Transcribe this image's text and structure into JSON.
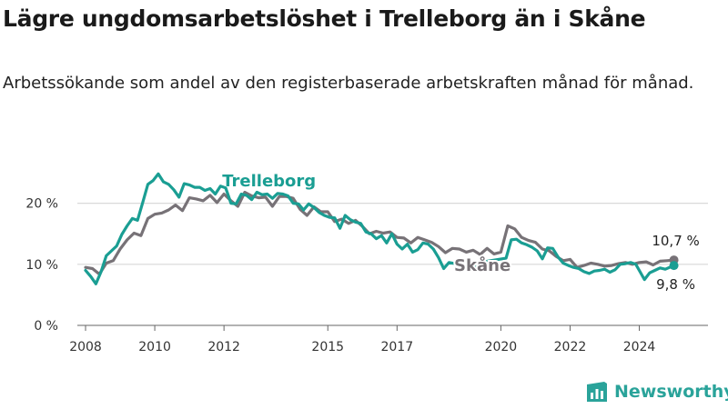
{
  "header": {
    "title": "Lägre ungdomsarbetslöshet i Trelleborg än i Skåne",
    "subtitle": "Arbetssökande som andel av den registerbaserade arbetskraften månad för månad."
  },
  "brand": {
    "name": "Newsworthy",
    "icon": "newsworthy-logo-icon",
    "color": "#2aa39a"
  },
  "chart_data": {
    "type": "line",
    "title": "",
    "xlabel": "",
    "ylabel": "",
    "xlim": [
      2007.5,
      2026.3
    ],
    "ylim": [
      0,
      25
    ],
    "grid": true,
    "y_ticks": [
      {
        "value": 0,
        "label": "0 %"
      },
      {
        "value": 10,
        "label": "10 %"
      },
      {
        "value": 20,
        "label": "20 %"
      }
    ],
    "x_ticks": [
      {
        "value": 2008,
        "label": "2008"
      },
      {
        "value": 2010,
        "label": "2010"
      },
      {
        "value": 2012,
        "label": "2012"
      },
      {
        "value": 2015,
        "label": "2015"
      },
      {
        "value": 2017,
        "label": "2017"
      },
      {
        "value": 2020,
        "label": "2020"
      },
      {
        "value": 2022,
        "label": "2022"
      },
      {
        "value": 2024,
        "label": "2024"
      }
    ],
    "series": [
      {
        "name": "Skåne",
        "color": "#777277",
        "end_label": "10,7 %",
        "points": [
          [
            2008.0,
            9.5
          ],
          [
            2008.2,
            9.3
          ],
          [
            2008.4,
            8.4
          ],
          [
            2008.6,
            10.2
          ],
          [
            2008.8,
            10.6
          ],
          [
            2009.0,
            12.5
          ],
          [
            2009.2,
            14.0
          ],
          [
            2009.4,
            15.1
          ],
          [
            2009.6,
            14.7
          ],
          [
            2009.8,
            17.5
          ],
          [
            2010.0,
            18.2
          ],
          [
            2010.2,
            18.4
          ],
          [
            2010.4,
            18.9
          ],
          [
            2010.6,
            19.7
          ],
          [
            2010.8,
            18.8
          ],
          [
            2011.0,
            20.9
          ],
          [
            2011.2,
            20.7
          ],
          [
            2011.4,
            20.4
          ],
          [
            2011.6,
            21.3
          ],
          [
            2011.8,
            20.1
          ],
          [
            2012.0,
            21.5
          ],
          [
            2012.2,
            20.4
          ],
          [
            2012.4,
            19.5
          ],
          [
            2012.6,
            21.8
          ],
          [
            2012.8,
            21.2
          ],
          [
            2013.0,
            20.9
          ],
          [
            2013.2,
            21.0
          ],
          [
            2013.4,
            19.5
          ],
          [
            2013.6,
            21.1
          ],
          [
            2013.8,
            21.1
          ],
          [
            2014.0,
            20.8
          ],
          [
            2014.2,
            19.0
          ],
          [
            2014.4,
            18.0
          ],
          [
            2014.6,
            19.4
          ],
          [
            2014.8,
            18.6
          ],
          [
            2015.0,
            18.6
          ],
          [
            2015.2,
            17.0
          ],
          [
            2015.4,
            17.4
          ],
          [
            2015.6,
            16.7
          ],
          [
            2015.8,
            17.2
          ],
          [
            2016.0,
            16.2
          ],
          [
            2016.2,
            15.0
          ],
          [
            2016.4,
            15.4
          ],
          [
            2016.6,
            15.1
          ],
          [
            2016.8,
            15.3
          ],
          [
            2017.0,
            14.4
          ],
          [
            2017.2,
            14.3
          ],
          [
            2017.4,
            13.5
          ],
          [
            2017.6,
            14.4
          ],
          [
            2017.8,
            14.0
          ],
          [
            2018.0,
            13.6
          ],
          [
            2018.2,
            12.9
          ],
          [
            2018.4,
            11.9
          ],
          [
            2018.6,
            12.6
          ],
          [
            2018.8,
            12.5
          ],
          [
            2019.0,
            12.0
          ],
          [
            2019.2,
            12.3
          ],
          [
            2019.4,
            11.6
          ],
          [
            2019.6,
            12.6
          ],
          [
            2019.8,
            11.7
          ],
          [
            2020.0,
            12.0
          ],
          [
            2020.2,
            16.3
          ],
          [
            2020.4,
            15.8
          ],
          [
            2020.6,
            14.4
          ],
          [
            2020.8,
            13.9
          ],
          [
            2021.0,
            13.6
          ],
          [
            2021.2,
            12.5
          ],
          [
            2021.4,
            12.2
          ],
          [
            2021.6,
            11.3
          ],
          [
            2021.8,
            10.6
          ],
          [
            2022.0,
            10.8
          ],
          [
            2022.2,
            9.5
          ],
          [
            2022.4,
            9.8
          ],
          [
            2022.6,
            10.2
          ],
          [
            2022.8,
            10.0
          ],
          [
            2023.0,
            9.7
          ],
          [
            2023.2,
            9.8
          ],
          [
            2023.4,
            10.1
          ],
          [
            2023.6,
            10.3
          ],
          [
            2023.8,
            10.0
          ],
          [
            2024.0,
            10.3
          ],
          [
            2024.2,
            10.4
          ],
          [
            2024.4,
            9.9
          ],
          [
            2024.6,
            10.5
          ],
          [
            2024.8,
            10.6
          ],
          [
            2025.0,
            10.7
          ]
        ]
      },
      {
        "name": "Trelleborg",
        "color": "#1a9e93",
        "end_label": "9,8 %",
        "points": [
          [
            2008.0,
            9.0
          ],
          [
            2008.15,
            8.0
          ],
          [
            2008.3,
            6.8
          ],
          [
            2008.45,
            8.8
          ],
          [
            2008.6,
            11.4
          ],
          [
            2008.75,
            12.2
          ],
          [
            2008.9,
            13.0
          ],
          [
            2009.05,
            14.9
          ],
          [
            2009.2,
            16.3
          ],
          [
            2009.35,
            17.5
          ],
          [
            2009.5,
            17.2
          ],
          [
            2009.65,
            20.1
          ],
          [
            2009.8,
            23.1
          ],
          [
            2009.95,
            23.7
          ],
          [
            2010.1,
            24.8
          ],
          [
            2010.25,
            23.5
          ],
          [
            2010.4,
            23.1
          ],
          [
            2010.55,
            22.2
          ],
          [
            2010.7,
            21.0
          ],
          [
            2010.85,
            23.2
          ],
          [
            2011.0,
            23.0
          ],
          [
            2011.15,
            22.6
          ],
          [
            2011.3,
            22.6
          ],
          [
            2011.45,
            22.1
          ],
          [
            2011.6,
            22.4
          ],
          [
            2011.75,
            21.5
          ],
          [
            2011.9,
            22.8
          ],
          [
            2012.05,
            22.5
          ],
          [
            2012.2,
            20.0
          ],
          [
            2012.35,
            19.9
          ],
          [
            2012.5,
            21.5
          ],
          [
            2012.65,
            21.3
          ],
          [
            2012.8,
            20.6
          ],
          [
            2012.95,
            21.8
          ],
          [
            2013.1,
            21.4
          ],
          [
            2013.25,
            21.5
          ],
          [
            2013.4,
            20.8
          ],
          [
            2013.55,
            21.6
          ],
          [
            2013.7,
            21.5
          ],
          [
            2013.85,
            21.2
          ],
          [
            2014.0,
            20.0
          ],
          [
            2014.15,
            19.9
          ],
          [
            2014.3,
            18.9
          ],
          [
            2014.45,
            19.9
          ],
          [
            2014.6,
            19.3
          ],
          [
            2014.75,
            18.5
          ],
          [
            2014.9,
            18.0
          ],
          [
            2015.05,
            17.7
          ],
          [
            2015.2,
            17.6
          ],
          [
            2015.35,
            15.9
          ],
          [
            2015.5,
            18.0
          ],
          [
            2015.65,
            17.3
          ],
          [
            2015.8,
            16.9
          ],
          [
            2015.95,
            16.7
          ],
          [
            2016.1,
            15.3
          ],
          [
            2016.25,
            15.0
          ],
          [
            2016.4,
            14.2
          ],
          [
            2016.55,
            14.7
          ],
          [
            2016.7,
            13.5
          ],
          [
            2016.85,
            15.0
          ],
          [
            2017.0,
            13.3
          ],
          [
            2017.15,
            12.5
          ],
          [
            2017.3,
            13.3
          ],
          [
            2017.45,
            12.0
          ],
          [
            2017.6,
            12.4
          ],
          [
            2017.75,
            13.5
          ],
          [
            2017.9,
            13.3
          ],
          [
            2018.05,
            12.5
          ],
          [
            2018.2,
            11.1
          ],
          [
            2018.35,
            9.3
          ],
          [
            2018.5,
            10.3
          ],
          [
            2019.3,
            9.5
          ],
          [
            2019.45,
            9.0
          ],
          [
            2019.6,
            10.5
          ],
          [
            2020.15,
            11.0
          ],
          [
            2020.3,
            14.0
          ],
          [
            2020.45,
            14.1
          ],
          [
            2020.6,
            13.5
          ],
          [
            2020.75,
            13.2
          ],
          [
            2020.9,
            12.8
          ],
          [
            2021.05,
            12.2
          ],
          [
            2021.2,
            10.9
          ],
          [
            2021.35,
            12.7
          ],
          [
            2021.5,
            12.6
          ],
          [
            2021.65,
            11.2
          ],
          [
            2021.8,
            10.2
          ],
          [
            2021.95,
            9.8
          ],
          [
            2022.1,
            9.5
          ],
          [
            2022.25,
            9.3
          ],
          [
            2022.4,
            8.8
          ],
          [
            2022.55,
            8.5
          ],
          [
            2022.7,
            8.9
          ],
          [
            2022.85,
            9.0
          ],
          [
            2023.0,
            9.2
          ],
          [
            2023.15,
            8.7
          ],
          [
            2023.3,
            9.1
          ],
          [
            2023.45,
            10.0
          ],
          [
            2023.6,
            10.1
          ],
          [
            2023.75,
            10.3
          ],
          [
            2023.9,
            10.0
          ],
          [
            2024.0,
            9.0
          ],
          [
            2024.15,
            7.5
          ],
          [
            2024.3,
            8.6
          ],
          [
            2024.45,
            9.0
          ],
          [
            2024.6,
            9.4
          ],
          [
            2024.75,
            9.2
          ],
          [
            2025.0,
            9.8
          ]
        ]
      }
    ]
  }
}
